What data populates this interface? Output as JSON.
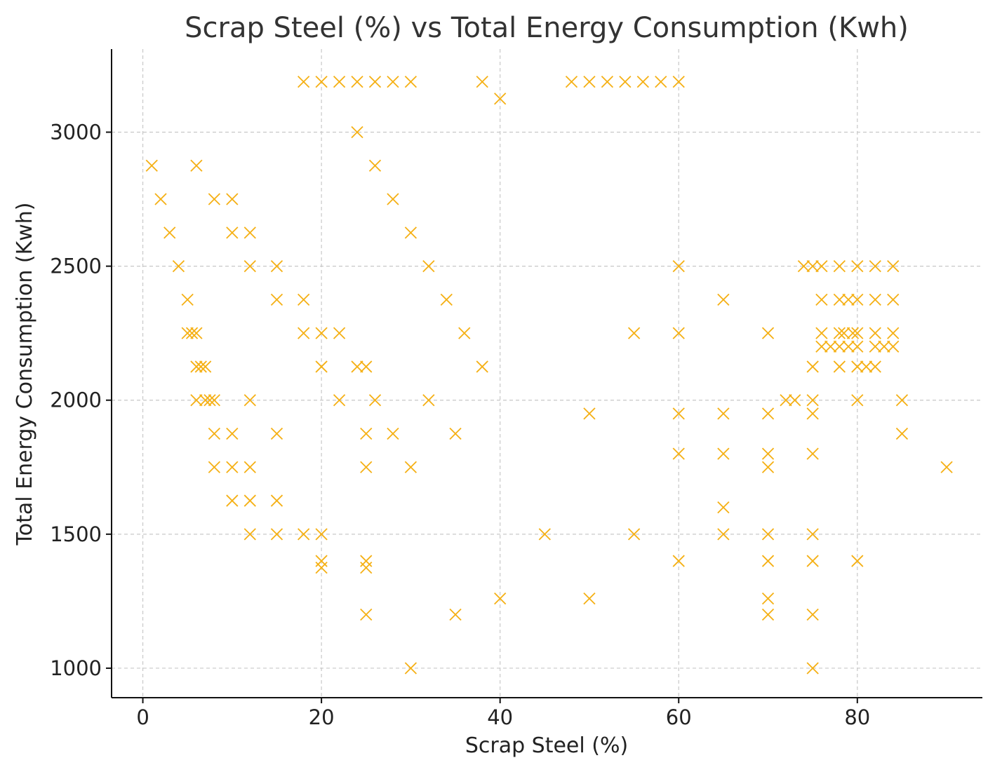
{
  "chart_data": {
    "type": "scatter",
    "title": "Scrap Steel (%) vs Total Energy Consumption (Kwh)",
    "xlabel": "Scrap Steel (%)",
    "ylabel": "Total Energy Consumption (Kwh)",
    "xlim": [
      -3.5,
      94
    ],
    "ylim": [
      890,
      3310
    ],
    "xticks": [
      0,
      20,
      40,
      60,
      80
    ],
    "yticks": [
      1000,
      1500,
      2000,
      2500,
      3000
    ],
    "grid": true,
    "marker": "x",
    "color": "#f5b014",
    "points": [
      [
        1,
        2875
      ],
      [
        2,
        2750
      ],
      [
        3,
        2625
      ],
      [
        4,
        2500
      ],
      [
        5,
        2375
      ],
      [
        5,
        2250
      ],
      [
        5.5,
        2250
      ],
      [
        6,
        2250
      ],
      [
        6,
        2125
      ],
      [
        6.5,
        2125
      ],
      [
        7,
        2125
      ],
      [
        6,
        2000
      ],
      [
        7,
        2000
      ],
      [
        7.5,
        2000
      ],
      [
        8,
        2000
      ],
      [
        6,
        2875
      ],
      [
        8,
        2750
      ],
      [
        10,
        2750
      ],
      [
        10,
        2625
      ],
      [
        12,
        2625
      ],
      [
        12,
        2500
      ],
      [
        15,
        2500
      ],
      [
        15,
        2375
      ],
      [
        8,
        1875
      ],
      [
        10,
        1875
      ],
      [
        8,
        1750
      ],
      [
        10,
        1750
      ],
      [
        12,
        1750
      ],
      [
        10,
        1625
      ],
      [
        12,
        1625
      ],
      [
        15,
        1625
      ],
      [
        12,
        2000
      ],
      [
        15,
        1875
      ],
      [
        12,
        1500
      ],
      [
        15,
        1500
      ],
      [
        18,
        1500
      ],
      [
        20,
        1500
      ],
      [
        18,
        2375
      ],
      [
        18,
        2250
      ],
      [
        20,
        2250
      ],
      [
        22,
        2250
      ],
      [
        20,
        2125
      ],
      [
        22,
        2000
      ],
      [
        20,
        1400
      ],
      [
        20,
        1375
      ],
      [
        25,
        1400
      ],
      [
        25,
        1375
      ],
      [
        25,
        1200
      ],
      [
        25,
        1750
      ],
      [
        25,
        1875
      ],
      [
        24,
        2125
      ],
      [
        25,
        2125
      ],
      [
        26,
        2000
      ],
      [
        24,
        3000
      ],
      [
        26,
        2875
      ],
      [
        28,
        2750
      ],
      [
        30,
        2625
      ],
      [
        32,
        2500
      ],
      [
        34,
        2375
      ],
      [
        36,
        2250
      ],
      [
        38,
        2125
      ],
      [
        32,
        2000
      ],
      [
        35,
        1875
      ],
      [
        28,
        1875
      ],
      [
        30,
        1750
      ],
      [
        30,
        1000
      ],
      [
        35,
        1200
      ],
      [
        40,
        1260
      ],
      [
        18,
        3188
      ],
      [
        20,
        3188
      ],
      [
        22,
        3188
      ],
      [
        24,
        3188
      ],
      [
        26,
        3188
      ],
      [
        28,
        3188
      ],
      [
        30,
        3188
      ],
      [
        38,
        3188
      ],
      [
        40,
        3125
      ],
      [
        48,
        3188
      ],
      [
        50,
        3188
      ],
      [
        52,
        3188
      ],
      [
        54,
        3188
      ],
      [
        56,
        3188
      ],
      [
        58,
        3188
      ],
      [
        60,
        3188
      ],
      [
        45,
        1500
      ],
      [
        50,
        1950
      ],
      [
        50,
        1260
      ],
      [
        55,
        2250
      ],
      [
        55,
        1500
      ],
      [
        60,
        2500
      ],
      [
        60,
        2250
      ],
      [
        60,
        1950
      ],
      [
        60,
        1800
      ],
      [
        60,
        1400
      ],
      [
        65,
        2375
      ],
      [
        65,
        1950
      ],
      [
        65,
        1800
      ],
      [
        65,
        1600
      ],
      [
        65,
        1500
      ],
      [
        70,
        2250
      ],
      [
        70,
        1950
      ],
      [
        70,
        1800
      ],
      [
        70,
        1750
      ],
      [
        70,
        1500
      ],
      [
        70,
        1400
      ],
      [
        70,
        1260
      ],
      [
        70,
        1200
      ],
      [
        72,
        2000
      ],
      [
        73,
        2000
      ],
      [
        74,
        2500
      ],
      [
        75,
        2500
      ],
      [
        76,
        2500
      ],
      [
        78,
        2500
      ],
      [
        80,
        2500
      ],
      [
        82,
        2500
      ],
      [
        84,
        2500
      ],
      [
        76,
        2375
      ],
      [
        78,
        2375
      ],
      [
        79,
        2375
      ],
      [
        80,
        2375
      ],
      [
        82,
        2375
      ],
      [
        84,
        2375
      ],
      [
        76,
        2250
      ],
      [
        78,
        2250
      ],
      [
        78.5,
        2250
      ],
      [
        79.5,
        2250
      ],
      [
        80,
        2250
      ],
      [
        82,
        2250
      ],
      [
        84,
        2250
      ],
      [
        76,
        2200
      ],
      [
        77,
        2200
      ],
      [
        78,
        2200
      ],
      [
        79,
        2200
      ],
      [
        80,
        2200
      ],
      [
        82,
        2200
      ],
      [
        83,
        2200
      ],
      [
        84,
        2200
      ],
      [
        75,
        2125
      ],
      [
        78,
        2125
      ],
      [
        80,
        2125
      ],
      [
        81,
        2125
      ],
      [
        82,
        2125
      ],
      [
        75,
        2000
      ],
      [
        80,
        2000
      ],
      [
        85,
        2000
      ],
      [
        75,
        1950
      ],
      [
        85,
        1875
      ],
      [
        75,
        1800
      ],
      [
        75,
        1500
      ],
      [
        75,
        1400
      ],
      [
        75,
        1200
      ],
      [
        75,
        1000
      ],
      [
        80,
        1400
      ],
      [
        90,
        1750
      ]
    ]
  }
}
